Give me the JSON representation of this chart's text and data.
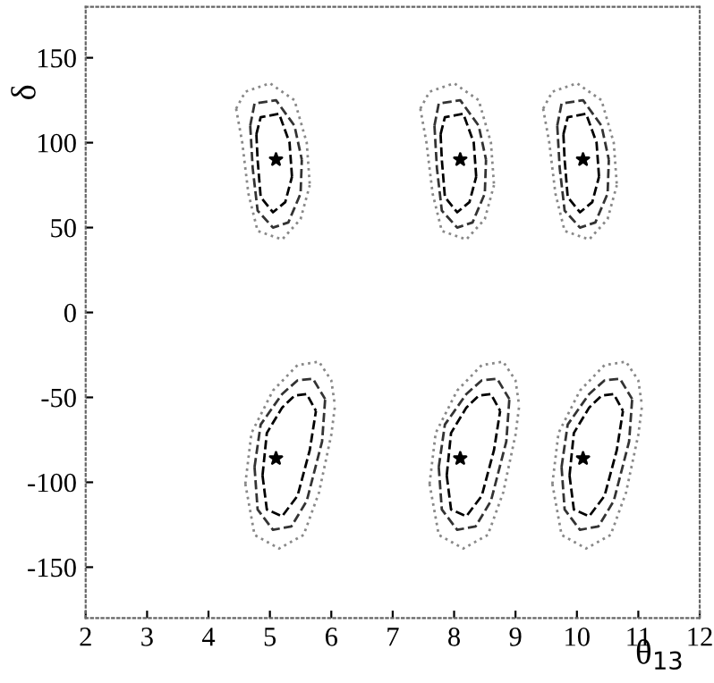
{
  "chart_data": {
    "type": "line",
    "xlabel": "θ$_{13}$",
    "ylabel": "δ",
    "xlim": [
      2,
      12
    ],
    "ylim": [
      -180,
      180
    ],
    "xticks": [
      2,
      3,
      4,
      5,
      6,
      7,
      8,
      9,
      10,
      11,
      12
    ],
    "yticks": [
      -150,
      -100,
      -50,
      0,
      50,
      100,
      150
    ],
    "series": [
      {
        "line_style": "dotted",
        "color": "#888888",
        "x": [
          4.45,
          4.6,
          5.0,
          5.4,
          5.6,
          5.65,
          null,
          4.45,
          4.55,
          4.65,
          4.8,
          5.2,
          5.5,
          5.65
        ],
        "values": [
          120,
          130,
          135,
          125,
          100,
          75,
          null,
          120,
          100,
          70,
          48,
          43,
          55,
          75
        ]
      },
      {
        "line_style": "dotted",
        "color": "#888888",
        "x": [
          7.45,
          7.6,
          8.0,
          8.4,
          8.6,
          8.65,
          null,
          7.45,
          7.55,
          7.65,
          7.8,
          8.2,
          8.5,
          8.65
        ],
        "values": [
          120,
          130,
          135,
          125,
          100,
          75,
          null,
          120,
          100,
          70,
          48,
          43,
          55,
          75
        ]
      },
      {
        "line_style": "dotted",
        "color": "#888888",
        "x": [
          9.45,
          9.6,
          10.0,
          10.4,
          10.6,
          10.65,
          null,
          9.45,
          9.55,
          9.65,
          9.8,
          10.2,
          10.5,
          10.65
        ],
        "values": [
          120,
          130,
          135,
          125,
          100,
          75,
          null,
          120,
          100,
          70,
          48,
          43,
          55,
          75
        ]
      },
      {
        "line_style": "dashed",
        "color": "#333333",
        "x": [
          4.68,
          4.75,
          5.1,
          5.4,
          5.52,
          null,
          4.68,
          4.72,
          4.8,
          5.05,
          5.3,
          5.5,
          5.52
        ],
        "values": [
          110,
          123,
          125,
          110,
          90,
          null,
          110,
          85,
          60,
          50,
          53,
          70,
          90
        ]
      },
      {
        "line_style": "dashed",
        "color": "#333333",
        "x": [
          7.68,
          7.75,
          8.1,
          8.4,
          8.52,
          null,
          7.68,
          7.72,
          7.8,
          8.05,
          8.3,
          8.5,
          8.52
        ],
        "values": [
          110,
          123,
          125,
          110,
          90,
          null,
          110,
          85,
          60,
          50,
          53,
          70,
          90
        ]
      },
      {
        "line_style": "dashed",
        "color": "#333333",
        "x": [
          9.68,
          9.75,
          10.1,
          10.4,
          10.52,
          null,
          9.68,
          9.72,
          9.8,
          10.05,
          10.3,
          10.5,
          10.52
        ],
        "values": [
          110,
          123,
          125,
          110,
          90,
          null,
          110,
          85,
          60,
          50,
          53,
          70,
          90
        ]
      },
      {
        "line_style": "dashed",
        "color": "#000000",
        "x": [
          4.78,
          4.85,
          5.15,
          5.32,
          5.36,
          null,
          4.78,
          4.8,
          4.85,
          5.05,
          5.25,
          5.36
        ],
        "values": [
          105,
          115,
          117,
          100,
          80,
          null,
          105,
          90,
          68,
          59,
          65,
          80
        ]
      },
      {
        "line_style": "dashed",
        "color": "#000000",
        "x": [
          7.78,
          7.85,
          8.15,
          8.32,
          8.36,
          null,
          7.78,
          7.8,
          7.85,
          8.05,
          8.25,
          8.36
        ],
        "values": [
          105,
          115,
          117,
          100,
          80,
          null,
          105,
          90,
          68,
          59,
          65,
          80
        ]
      },
      {
        "line_style": "dashed",
        "color": "#000000",
        "x": [
          9.78,
          9.85,
          10.15,
          10.32,
          10.36,
          null,
          9.78,
          9.8,
          9.85,
          10.05,
          10.25,
          10.36
        ],
        "values": [
          105,
          115,
          117,
          100,
          80,
          null,
          105,
          90,
          68,
          59,
          65,
          80
        ]
      },
      {
        "line_style": "dotted",
        "color": "#888888",
        "x": [
          4.6,
          4.7,
          5.05,
          5.45,
          5.8,
          6.0,
          6.06,
          null,
          4.6,
          4.75,
          5.15,
          5.55,
          5.8,
          6.0,
          6.06
        ],
        "values": [
          -101,
          -71,
          -46,
          -31,
          -29,
          -40,
          -55,
          null,
          -101,
          -131,
          -139,
          -131,
          -106,
          -72,
          -55
        ]
      },
      {
        "line_style": "dotted",
        "color": "#888888",
        "x": [
          7.6,
          7.7,
          8.05,
          8.45,
          8.8,
          9.0,
          9.06,
          null,
          7.6,
          7.75,
          8.15,
          8.55,
          8.8,
          9.0,
          9.06
        ],
        "values": [
          -101,
          -71,
          -46,
          -31,
          -29,
          -40,
          -55,
          null,
          -101,
          -131,
          -139,
          -131,
          -106,
          -72,
          -55
        ]
      },
      {
        "line_style": "dotted",
        "color": "#888888",
        "x": [
          9.6,
          9.7,
          10.05,
          10.45,
          10.8,
          11.0,
          11.06,
          null,
          9.6,
          9.75,
          10.15,
          10.55,
          10.8,
          11.0,
          11.06
        ],
        "values": [
          -101,
          -71,
          -46,
          -31,
          -29,
          -40,
          -55,
          null,
          -101,
          -131,
          -139,
          -131,
          -106,
          -72,
          -55
        ]
      },
      {
        "line_style": "dashed",
        "color": "#333333",
        "x": [
          4.75,
          4.85,
          5.2,
          5.45,
          5.7,
          5.9,
          null,
          4.75,
          4.8,
          5.05,
          5.35,
          5.6,
          5.85,
          5.9
        ],
        "values": [
          -91,
          -66,
          -48,
          -40,
          -39,
          -51,
          null,
          -91,
          -116,
          -128,
          -126,
          -111,
          -76,
          -51
        ]
      },
      {
        "line_style": "dashed",
        "color": "#333333",
        "x": [
          7.75,
          7.85,
          8.2,
          8.45,
          8.7,
          8.9,
          null,
          7.75,
          7.8,
          8.05,
          8.35,
          8.6,
          8.85,
          8.9
        ],
        "values": [
          -91,
          -66,
          -48,
          -40,
          -39,
          -51,
          null,
          -91,
          -116,
          -128,
          -126,
          -111,
          -76,
          -51
        ]
      },
      {
        "line_style": "dashed",
        "color": "#333333",
        "x": [
          9.75,
          9.85,
          10.2,
          10.45,
          10.7,
          10.9,
          null,
          9.75,
          9.8,
          10.05,
          10.35,
          10.6,
          10.85,
          10.9
        ],
        "values": [
          -91,
          -66,
          -48,
          -40,
          -39,
          -51,
          null,
          -91,
          -116,
          -128,
          -126,
          -111,
          -76,
          -51
        ]
      },
      {
        "line_style": "dashed",
        "color": "#000000",
        "x": [
          4.88,
          4.95,
          5.2,
          5.4,
          5.6,
          5.75,
          null,
          4.88,
          4.95,
          5.2,
          5.45,
          5.65,
          5.75
        ],
        "values": [
          -96,
          -71,
          -56,
          -49,
          -48,
          -58,
          null,
          -96,
          -116,
          -120,
          -108,
          -81,
          -58
        ]
      },
      {
        "line_style": "dashed",
        "color": "#000000",
        "x": [
          7.88,
          7.95,
          8.2,
          8.4,
          8.6,
          8.75,
          null,
          7.88,
          7.95,
          8.2,
          8.45,
          8.65,
          8.75
        ],
        "values": [
          -96,
          -71,
          -56,
          -49,
          -48,
          -58,
          null,
          -96,
          -116,
          -120,
          -108,
          -81,
          -58
        ]
      },
      {
        "line_style": "dashed",
        "color": "#000000",
        "x": [
          9.88,
          9.95,
          10.2,
          10.4,
          10.6,
          10.75,
          null,
          9.88,
          9.95,
          10.2,
          10.45,
          10.65,
          10.75
        ],
        "values": [
          -96,
          -71,
          -56,
          -49,
          -48,
          -58,
          null,
          -96,
          -116,
          -120,
          -108,
          -81,
          -58
        ]
      },
      {
        "type": "scatter",
        "marker": "star",
        "color": "#000000",
        "x": [
          5.1,
          8.1,
          10.1,
          5.1,
          8.1,
          10.1
        ],
        "values": [
          90,
          90,
          90,
          -86,
          -86,
          -86
        ]
      }
    ]
  }
}
